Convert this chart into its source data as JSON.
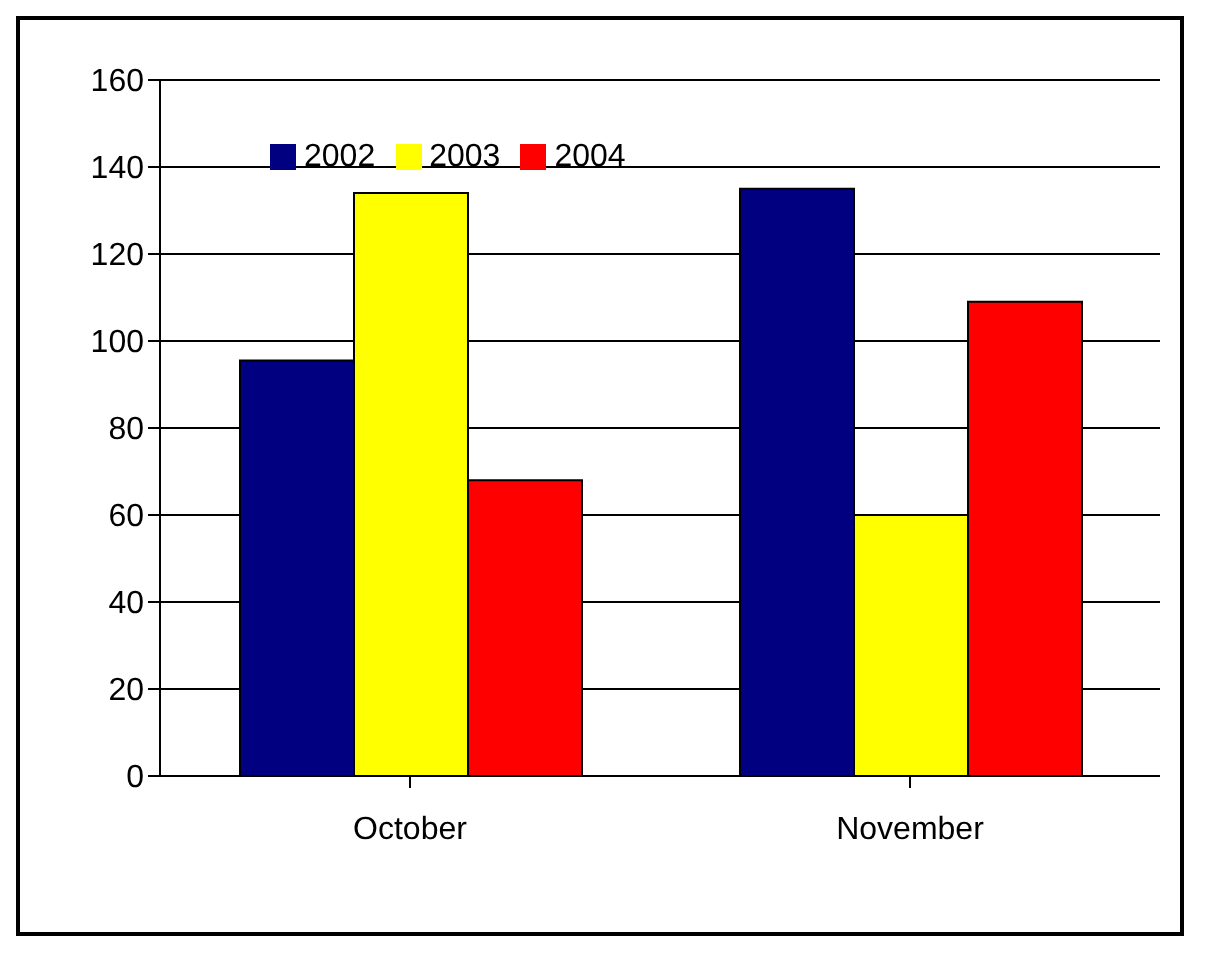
{
  "chart_data": {
    "type": "bar",
    "categories": [
      "October",
      "November"
    ],
    "series": [
      {
        "name": "2002",
        "color": "#000080",
        "values": [
          95.5,
          135
        ]
      },
      {
        "name": "2003",
        "color": "#ffff00",
        "values": [
          134,
          60
        ]
      },
      {
        "name": "2004",
        "color": "#ff0000",
        "values": [
          68,
          109
        ]
      }
    ],
    "ylim": [
      0,
      160
    ],
    "yticks": [
      0,
      20,
      40,
      60,
      80,
      100,
      120,
      140,
      160
    ],
    "grid": "y",
    "legend": "top left"
  }
}
